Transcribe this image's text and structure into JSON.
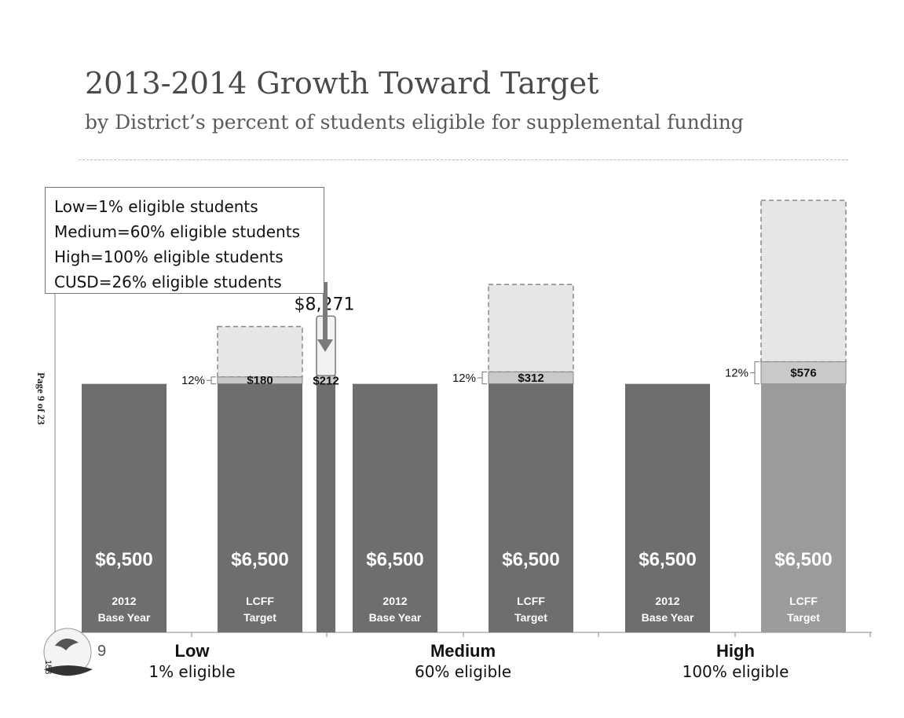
{
  "header": {
    "title": "2013-2014 Growth Toward Target",
    "subtitle": "by District’s percent of students eligible for supplemental funding"
  },
  "side_note": {
    "page_label": "Page 9 of 23"
  },
  "legend": {
    "lines": [
      "Low=1% eligible students",
      "Medium=60% eligible students",
      "High=100% eligible students",
      "CUSD=26% eligible students"
    ]
  },
  "footer": {
    "slide_number": "9",
    "side_number": "153"
  },
  "colors": {
    "base_bar": "#6e6e6e",
    "target_bar_high": "#9b9b9b",
    "increment": "#c9c9c9",
    "remaining_gap": "#e6e6e6",
    "arrow": "#7a7a7a"
  },
  "chart_data": {
    "type": "bar",
    "stacked": true,
    "title": "2013-2014 Growth Toward Target",
    "ylim": [
      0,
      16000
    ],
    "grid": false,
    "groups": [
      {
        "name": "Low",
        "description": "1% eligible",
        "bars": [
          {
            "kind": "base",
            "base": 6500,
            "value_label": "$6,500",
            "label_lines": [
              "2012",
              "Base Year"
            ]
          },
          {
            "kind": "target",
            "base": 6500,
            "increment": 180,
            "increment_label": "$180",
            "pct_label": "12%",
            "target_total": 8000,
            "value_label": "$6,500",
            "label_lines": [
              "LCFF",
              "Target"
            ]
          }
        ]
      },
      {
        "name": "Medium",
        "description": "60% eligible",
        "bars": [
          {
            "kind": "base",
            "base": 6500,
            "value_label": "$6,500",
            "label_lines": [
              "2012",
              "Base Year"
            ]
          },
          {
            "kind": "target",
            "base": 6500,
            "increment": 312,
            "increment_label": "$312",
            "pct_label": "12%",
            "target_total": 9100,
            "value_label": "$6,500",
            "label_lines": [
              "LCFF",
              "Target"
            ]
          }
        ]
      },
      {
        "name": "High",
        "description": "100% eligible",
        "bars": [
          {
            "kind": "base",
            "base": 6500,
            "value_label": "$6,500",
            "label_lines": [
              "2012",
              "Base Year"
            ]
          },
          {
            "kind": "target",
            "base": 6500,
            "increment": 576,
            "increment_label": "$576",
            "pct_label": "12%",
            "target_total": 11300,
            "value_label": "$6,500",
            "label_lines": [
              "LCFF",
              "Target"
            ],
            "lighter": true
          }
        ]
      }
    ],
    "cusd": {
      "base": 6500,
      "increment": 212,
      "increment_label": "$212",
      "target_total": 8271,
      "total_label": "$8,271"
    }
  }
}
